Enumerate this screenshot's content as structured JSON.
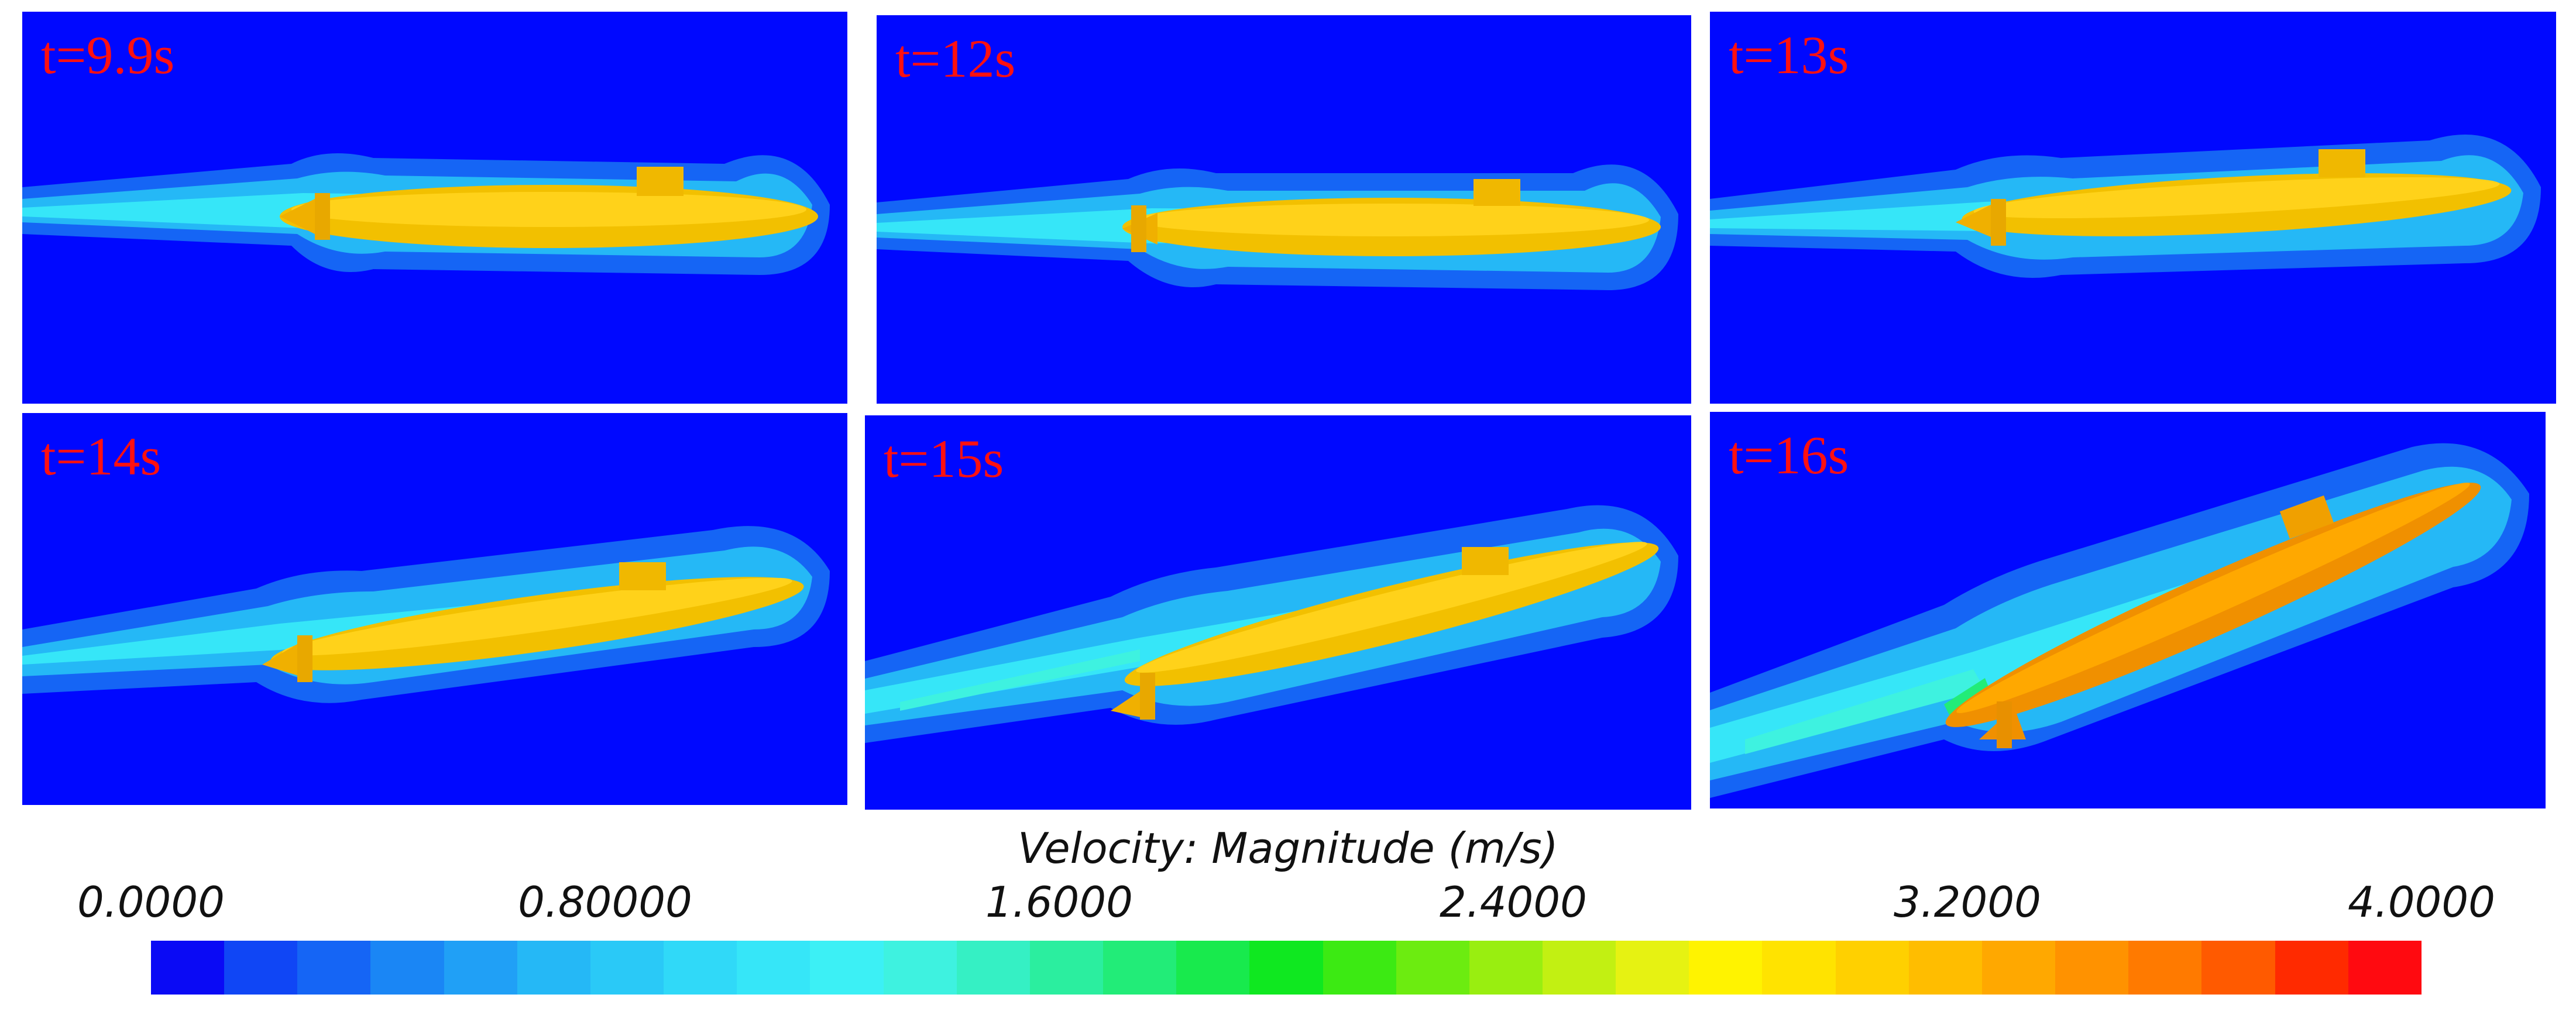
{
  "panels": [
    {
      "label": "t=9.9s"
    },
    {
      "label": "t=12s"
    },
    {
      "label": "t=13s"
    },
    {
      "label": "t=14s"
    },
    {
      "label": "t=15s"
    },
    {
      "label": "t=16s"
    }
  ],
  "legend": {
    "title": "Velocity: Magnitude (m/s)",
    "ticks": [
      "0.0000",
      "0.80000",
      "1.6000",
      "2.4000",
      "3.2000",
      "4.0000"
    ],
    "colors": [
      "#0a0af5",
      "#1046f5",
      "#1565f5",
      "#1a86f5",
      "#20a0f6",
      "#25b8f6",
      "#2ac9f7",
      "#30d9f8",
      "#36e6f8",
      "#3cf0f5",
      "#3ef2e0",
      "#35f0c4",
      "#2bee9f",
      "#22ec78",
      "#18ea4d",
      "#0fe820",
      "#3cea13",
      "#6cec10",
      "#99ee10",
      "#c2f012",
      "#e6f212",
      "#fff300",
      "#ffe300",
      "#ffd000",
      "#ffbd00",
      "#ffa800",
      "#ff9200",
      "#ff7a00",
      "#ff5a00",
      "#ff2a00",
      "#ff0a10"
    ]
  }
}
